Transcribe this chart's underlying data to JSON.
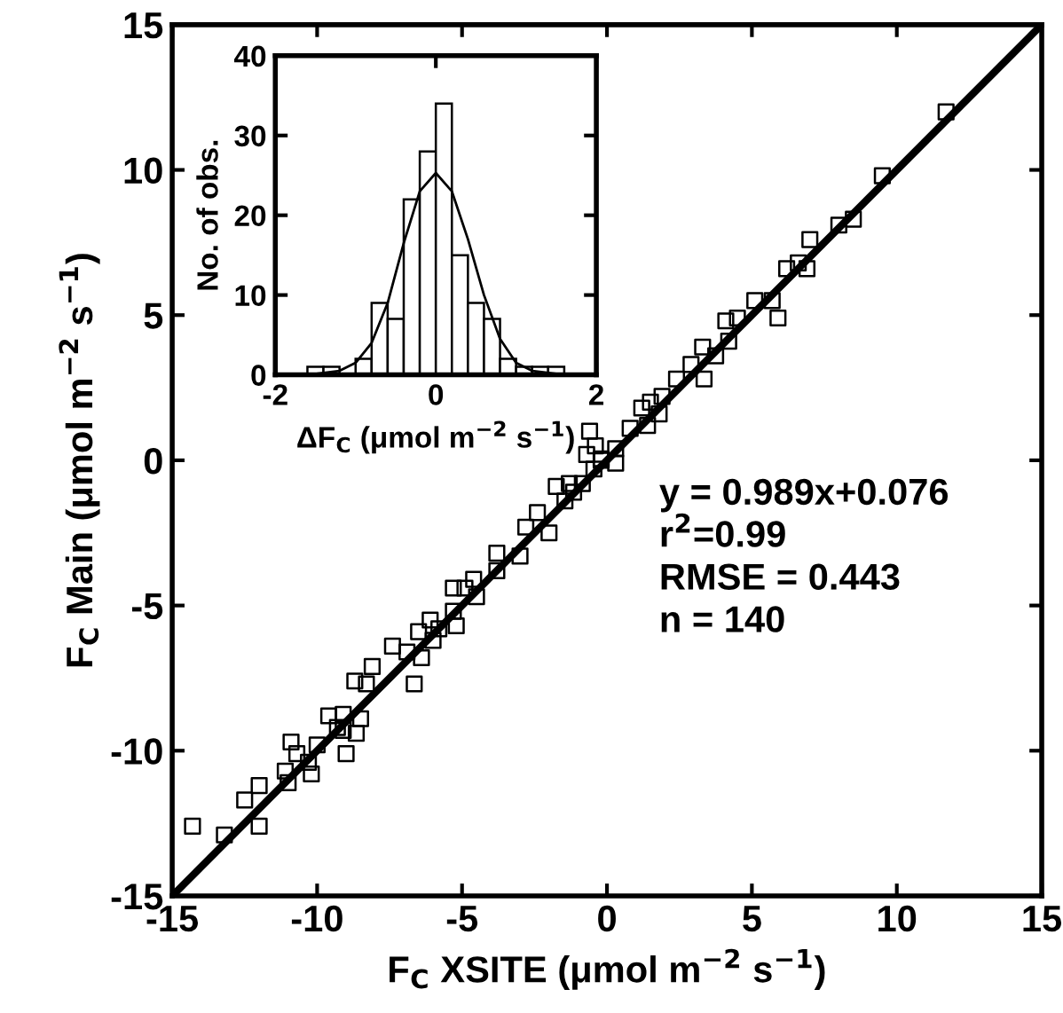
{
  "chart_data": [
    {
      "type": "scatter",
      "xlabel": "F$_{C}$ XSITE (μmol m$^{−2}$ s$^{−1}$)",
      "ylabel": "F$_{C}$ Main (μmol m$^{−2}$ s$^{−1}$)",
      "xlim": [
        -15,
        15
      ],
      "ylim": [
        -15,
        15
      ],
      "xticks": [
        -15,
        -10,
        -5,
        0,
        5,
        10,
        15
      ],
      "yticks": [
        -15,
        -10,
        -5,
        0,
        5,
        10,
        15
      ],
      "grid": false,
      "legend": false,
      "series": [
        {
          "type": "scatter",
          "color": "#000000",
          "marker": "square",
          "x": [
            -14.3,
            -13.2,
            -12.5,
            -12.0,
            -12.0,
            -11.1,
            -11.0,
            -10.9,
            -10.7,
            -10.3,
            -10.2,
            -10.0,
            -9.6,
            -9.3,
            -9.1,
            -9.1,
            -9.0,
            -8.7,
            -8.65,
            -8.5,
            -8.3,
            -8.1,
            -7.4,
            -6.65,
            -6.9,
            -6.5,
            -6.4,
            -6.1,
            -6.0,
            -5.8,
            -5.3,
            -5.3,
            -5.2,
            -4.9,
            -4.6,
            -4.5,
            -3.8,
            -3.8,
            -3.0,
            -2.8,
            -2.4,
            -2.0,
            -1.75,
            -1.45,
            -1.15,
            -0.85,
            -0.45,
            -0.2,
            0.3,
            11.7,
            9.5,
            8.0,
            8.5,
            7.0,
            6.2,
            6.6,
            6.9,
            5.1,
            5.7,
            5.9,
            4.5,
            4.1,
            4.2,
            3.3,
            3.75,
            2.9,
            3.35,
            2.4,
            1.9,
            1.5,
            1.2,
            1.8,
            1.4,
            0.8,
            -0.6,
            -0.4,
            -0.7,
            0.3,
            -0.2,
            -1.3
          ],
          "values": [
            -12.6,
            -12.9,
            -11.7,
            -12.6,
            -11.2,
            -10.7,
            -11.1,
            -9.7,
            -10.1,
            -10.4,
            -10.8,
            -9.8,
            -8.8,
            -9.2,
            -8.75,
            -9.3,
            -10.1,
            -7.6,
            -9.4,
            -8.9,
            -7.7,
            -7.1,
            -6.4,
            -7.7,
            -6.6,
            -5.9,
            -6.8,
            -5.5,
            -6.2,
            -5.8,
            -4.4,
            -5.2,
            -5.7,
            -4.4,
            -4.1,
            -4.7,
            -3.8,
            -3.2,
            -3.3,
            -2.3,
            -1.8,
            -2.5,
            -0.9,
            -1.4,
            -1.1,
            -0.8,
            -0.3,
            0,
            -0.1,
            12.0,
            9.8,
            8.1,
            8.3,
            7.6,
            6.6,
            6.8,
            6.6,
            5.5,
            5.5,
            4.9,
            4.9,
            4.8,
            4.1,
            3.9,
            3.6,
            3.3,
            2.8,
            2.8,
            2.2,
            2.0,
            1.8,
            1.6,
            1.2,
            1.1,
            1.0,
            0.5,
            0.2,
            0.4,
            0.05,
            -0.8
          ]
        },
        {
          "type": "line",
          "color": "#000000",
          "x": [
            -15,
            15
          ],
          "values": [
            -15,
            15
          ]
        }
      ],
      "annotations": [
        "y = 0.989x+0.076",
        "r$^{2}$=0.99",
        "RMSE = 0.443",
        "n = 140"
      ]
    },
    {
      "type": "histogram",
      "xlabel": "ΔF$_{C}$ (μmol m$^{−2}$ s$^{−1}$)",
      "ylabel": "No. of obs.",
      "xlim": [
        -2,
        2
      ],
      "ylim": [
        0,
        40
      ],
      "xticks": [
        -2,
        0,
        2
      ],
      "yticks": [
        0,
        10,
        20,
        30,
        40
      ],
      "grid": false,
      "legend": false,
      "color": "#ffffff",
      "bins": [
        -1.6,
        -1.4,
        -1.2,
        -1.0,
        -0.8,
        -0.6,
        -0.4,
        -0.2,
        0,
        0.2,
        0.4,
        0.6,
        0.8,
        1.0,
        1.2,
        1.4,
        1.6
      ],
      "values": [
        1,
        1,
        0,
        2,
        9,
        7,
        22,
        28,
        34,
        15,
        9,
        7,
        2,
        1,
        1,
        1
      ],
      "series": [
        {
          "type": "line",
          "color": "#000000",
          "x": [
            -1.6,
            -1.2,
            -1.0,
            -0.8,
            -0.6,
            -0.4,
            -0.2,
            0,
            0.2,
            0.4,
            0.6,
            0.8,
            1.0,
            1.2,
            1.6
          ],
          "values": [
            0,
            0.5,
            1.5,
            4,
            9,
            16.5,
            23,
            25.3,
            23,
            17,
            10,
            4.5,
            1.5,
            0.5,
            0
          ]
        }
      ]
    }
  ]
}
